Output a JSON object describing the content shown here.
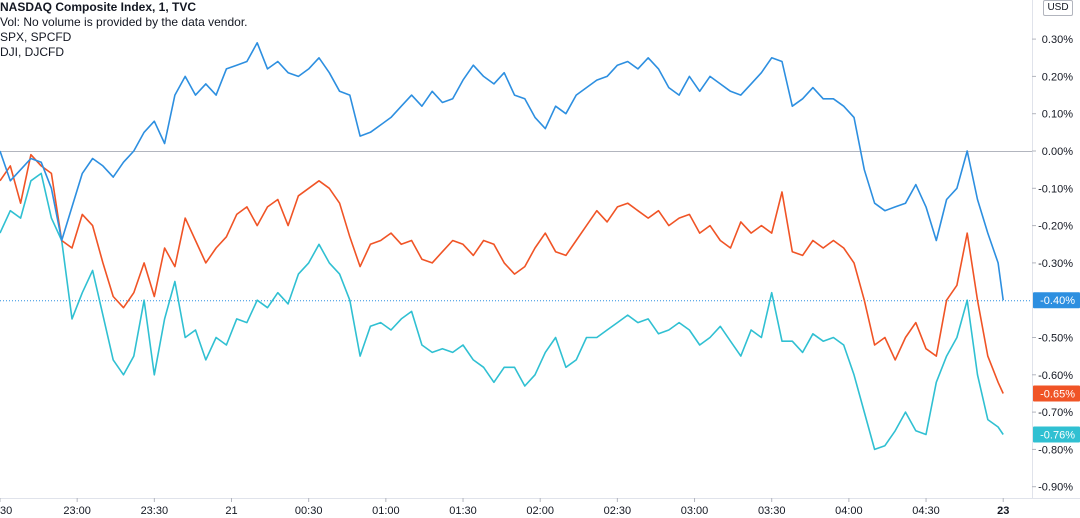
{
  "legend": {
    "main": "NASDAQ Composite Index, 1, TVC",
    "vol": "Vol: No volume is provided by the data vendor.",
    "spx": "SPX, SPCFD",
    "dji": "DJI, DJCFD"
  },
  "currency_button": "USD",
  "chart_data": {
    "type": "line",
    "ylim": [
      -0.93,
      0.36
    ],
    "y_ticks": [
      "0.30%",
      "0.20%",
      "0.10%",
      "0.00%",
      "-0.10%",
      "-0.20%",
      "-0.30%",
      "-0.50%",
      "-0.60%",
      "-0.70%",
      "-0.80%",
      "-0.90%"
    ],
    "y_tick_values": [
      0.3,
      0.2,
      0.1,
      0.0,
      -0.1,
      -0.2,
      -0.3,
      -0.5,
      -0.6,
      -0.7,
      -0.8,
      -0.9
    ],
    "x_ticks": [
      {
        "label": "30",
        "t": 0
      },
      {
        "label": "23:00",
        "t": 15
      },
      {
        "label": "23:30",
        "t": 30
      },
      {
        "label": "21",
        "t": 45
      },
      {
        "label": "00:30",
        "t": 60
      },
      {
        "label": "01:00",
        "t": 75
      },
      {
        "label": "01:30",
        "t": 90
      },
      {
        "label": "02:00",
        "t": 105
      },
      {
        "label": "02:30",
        "t": 120
      },
      {
        "label": "03:00",
        "t": 135
      },
      {
        "label": "03:30",
        "t": 150
      },
      {
        "label": "04:00",
        "t": 165
      },
      {
        "label": "04:30",
        "t": 180
      },
      {
        "label": "23",
        "t": 195,
        "bold": true
      }
    ],
    "series": [
      {
        "color": "#2d8fe0",
        "last_label": "-0.40%",
        "last_value": -0.4,
        "points": [
          [
            0,
            0.0
          ],
          [
            2,
            -0.08
          ],
          [
            4,
            -0.05
          ],
          [
            6,
            -0.02
          ],
          [
            8,
            -0.03
          ],
          [
            10,
            -0.1
          ],
          [
            12,
            -0.24
          ],
          [
            14,
            -0.15
          ],
          [
            16,
            -0.06
          ],
          [
            18,
            -0.02
          ],
          [
            20,
            -0.04
          ],
          [
            22,
            -0.07
          ],
          [
            24,
            -0.03
          ],
          [
            26,
            0.0
          ],
          [
            28,
            0.05
          ],
          [
            30,
            0.08
          ],
          [
            32,
            0.02
          ],
          [
            34,
            0.15
          ],
          [
            36,
            0.2
          ],
          [
            38,
            0.15
          ],
          [
            40,
            0.18
          ],
          [
            42,
            0.15
          ],
          [
            44,
            0.22
          ],
          [
            46,
            0.23
          ],
          [
            48,
            0.24
          ],
          [
            50,
            0.29
          ],
          [
            52,
            0.22
          ],
          [
            54,
            0.24
          ],
          [
            56,
            0.21
          ],
          [
            58,
            0.2
          ],
          [
            60,
            0.22
          ],
          [
            62,
            0.25
          ],
          [
            64,
            0.21
          ],
          [
            66,
            0.16
          ],
          [
            68,
            0.15
          ],
          [
            70,
            0.04
          ],
          [
            72,
            0.05
          ],
          [
            74,
            0.07
          ],
          [
            76,
            0.09
          ],
          [
            78,
            0.12
          ],
          [
            80,
            0.15
          ],
          [
            82,
            0.12
          ],
          [
            84,
            0.16
          ],
          [
            86,
            0.13
          ],
          [
            88,
            0.14
          ],
          [
            90,
            0.19
          ],
          [
            92,
            0.23
          ],
          [
            94,
            0.2
          ],
          [
            96,
            0.18
          ],
          [
            98,
            0.21
          ],
          [
            100,
            0.15
          ],
          [
            102,
            0.14
          ],
          [
            104,
            0.09
          ],
          [
            106,
            0.06
          ],
          [
            108,
            0.12
          ],
          [
            110,
            0.1
          ],
          [
            112,
            0.15
          ],
          [
            114,
            0.17
          ],
          [
            116,
            0.19
          ],
          [
            118,
            0.2
          ],
          [
            120,
            0.23
          ],
          [
            122,
            0.24
          ],
          [
            124,
            0.22
          ],
          [
            126,
            0.25
          ],
          [
            128,
            0.22
          ],
          [
            130,
            0.17
          ],
          [
            132,
            0.15
          ],
          [
            134,
            0.2
          ],
          [
            136,
            0.16
          ],
          [
            138,
            0.2
          ],
          [
            140,
            0.18
          ],
          [
            142,
            0.16
          ],
          [
            144,
            0.15
          ],
          [
            146,
            0.18
          ],
          [
            148,
            0.21
          ],
          [
            150,
            0.25
          ],
          [
            152,
            0.24
          ],
          [
            154,
            0.12
          ],
          [
            156,
            0.14
          ],
          [
            158,
            0.17
          ],
          [
            160,
            0.14
          ],
          [
            162,
            0.14
          ],
          [
            164,
            0.12
          ],
          [
            166,
            0.09
          ],
          [
            168,
            -0.05
          ],
          [
            170,
            -0.14
          ],
          [
            172,
            -0.16
          ],
          [
            174,
            -0.15
          ],
          [
            176,
            -0.14
          ],
          [
            178,
            -0.09
          ],
          [
            180,
            -0.15
          ],
          [
            182,
            -0.24
          ],
          [
            184,
            -0.13
          ],
          [
            186,
            -0.1
          ],
          [
            188,
            0.0
          ],
          [
            190,
            -0.13
          ],
          [
            192,
            -0.22
          ],
          [
            194,
            -0.3
          ],
          [
            195,
            -0.4
          ]
        ]
      },
      {
        "color": "#f05426",
        "last_label": "-0.65%",
        "last_value": -0.65,
        "points": [
          [
            0,
            -0.08
          ],
          [
            2,
            -0.04
          ],
          [
            4,
            -0.14
          ],
          [
            6,
            -0.01
          ],
          [
            8,
            -0.04
          ],
          [
            10,
            -0.06
          ],
          [
            12,
            -0.24
          ],
          [
            14,
            -0.26
          ],
          [
            16,
            -0.17
          ],
          [
            18,
            -0.2
          ],
          [
            20,
            -0.3
          ],
          [
            22,
            -0.39
          ],
          [
            24,
            -0.42
          ],
          [
            26,
            -0.38
          ],
          [
            28,
            -0.3
          ],
          [
            30,
            -0.39
          ],
          [
            32,
            -0.26
          ],
          [
            34,
            -0.31
          ],
          [
            36,
            -0.18
          ],
          [
            38,
            -0.24
          ],
          [
            40,
            -0.3
          ],
          [
            42,
            -0.26
          ],
          [
            44,
            -0.23
          ],
          [
            46,
            -0.17
          ],
          [
            48,
            -0.15
          ],
          [
            50,
            -0.2
          ],
          [
            52,
            -0.15
          ],
          [
            54,
            -0.13
          ],
          [
            56,
            -0.2
          ],
          [
            58,
            -0.12
          ],
          [
            60,
            -0.1
          ],
          [
            62,
            -0.08
          ],
          [
            64,
            -0.1
          ],
          [
            66,
            -0.14
          ],
          [
            68,
            -0.23
          ],
          [
            70,
            -0.31
          ],
          [
            72,
            -0.25
          ],
          [
            74,
            -0.24
          ],
          [
            76,
            -0.22
          ],
          [
            78,
            -0.25
          ],
          [
            80,
            -0.24
          ],
          [
            82,
            -0.29
          ],
          [
            84,
            -0.3
          ],
          [
            86,
            -0.27
          ],
          [
            88,
            -0.24
          ],
          [
            90,
            -0.25
          ],
          [
            92,
            -0.28
          ],
          [
            94,
            -0.24
          ],
          [
            96,
            -0.25
          ],
          [
            98,
            -0.3
          ],
          [
            100,
            -0.33
          ],
          [
            102,
            -0.31
          ],
          [
            104,
            -0.26
          ],
          [
            106,
            -0.22
          ],
          [
            108,
            -0.27
          ],
          [
            110,
            -0.28
          ],
          [
            112,
            -0.24
          ],
          [
            114,
            -0.2
          ],
          [
            116,
            -0.16
          ],
          [
            118,
            -0.19
          ],
          [
            120,
            -0.15
          ],
          [
            122,
            -0.14
          ],
          [
            124,
            -0.16
          ],
          [
            126,
            -0.18
          ],
          [
            128,
            -0.16
          ],
          [
            130,
            -0.2
          ],
          [
            132,
            -0.18
          ],
          [
            134,
            -0.17
          ],
          [
            136,
            -0.22
          ],
          [
            138,
            -0.2
          ],
          [
            140,
            -0.24
          ],
          [
            142,
            -0.26
          ],
          [
            144,
            -0.19
          ],
          [
            146,
            -0.22
          ],
          [
            148,
            -0.2
          ],
          [
            150,
            -0.22
          ],
          [
            152,
            -0.11
          ],
          [
            154,
            -0.27
          ],
          [
            156,
            -0.28
          ],
          [
            158,
            -0.24
          ],
          [
            160,
            -0.26
          ],
          [
            162,
            -0.24
          ],
          [
            164,
            -0.26
          ],
          [
            166,
            -0.3
          ],
          [
            168,
            -0.4
          ],
          [
            170,
            -0.52
          ],
          [
            172,
            -0.5
          ],
          [
            174,
            -0.56
          ],
          [
            176,
            -0.5
          ],
          [
            178,
            -0.46
          ],
          [
            180,
            -0.53
          ],
          [
            182,
            -0.55
          ],
          [
            184,
            -0.4
          ],
          [
            186,
            -0.36
          ],
          [
            188,
            -0.22
          ],
          [
            190,
            -0.4
          ],
          [
            192,
            -0.55
          ],
          [
            194,
            -0.62
          ],
          [
            195,
            -0.65
          ]
        ]
      },
      {
        "color": "#30c0d2",
        "last_label": "-0.76%",
        "last_value": -0.76,
        "points": [
          [
            0,
            -0.22
          ],
          [
            2,
            -0.16
          ],
          [
            4,
            -0.18
          ],
          [
            6,
            -0.08
          ],
          [
            8,
            -0.06
          ],
          [
            10,
            -0.18
          ],
          [
            12,
            -0.24
          ],
          [
            14,
            -0.45
          ],
          [
            16,
            -0.38
          ],
          [
            18,
            -0.32
          ],
          [
            20,
            -0.44
          ],
          [
            22,
            -0.56
          ],
          [
            24,
            -0.6
          ],
          [
            26,
            -0.55
          ],
          [
            28,
            -0.4
          ],
          [
            30,
            -0.6
          ],
          [
            32,
            -0.45
          ],
          [
            34,
            -0.35
          ],
          [
            36,
            -0.5
          ],
          [
            38,
            -0.48
          ],
          [
            40,
            -0.56
          ],
          [
            42,
            -0.5
          ],
          [
            44,
            -0.52
          ],
          [
            46,
            -0.45
          ],
          [
            48,
            -0.46
          ],
          [
            50,
            -0.4
          ],
          [
            52,
            -0.42
          ],
          [
            54,
            -0.38
          ],
          [
            56,
            -0.41
          ],
          [
            58,
            -0.33
          ],
          [
            60,
            -0.3
          ],
          [
            62,
            -0.25
          ],
          [
            64,
            -0.3
          ],
          [
            66,
            -0.33
          ],
          [
            68,
            -0.4
          ],
          [
            70,
            -0.55
          ],
          [
            72,
            -0.47
          ],
          [
            74,
            -0.46
          ],
          [
            76,
            -0.48
          ],
          [
            78,
            -0.45
          ],
          [
            80,
            -0.43
          ],
          [
            82,
            -0.52
          ],
          [
            84,
            -0.54
          ],
          [
            86,
            -0.53
          ],
          [
            88,
            -0.54
          ],
          [
            90,
            -0.52
          ],
          [
            92,
            -0.56
          ],
          [
            94,
            -0.58
          ],
          [
            96,
            -0.62
          ],
          [
            98,
            -0.58
          ],
          [
            100,
            -0.58
          ],
          [
            102,
            -0.63
          ],
          [
            104,
            -0.6
          ],
          [
            106,
            -0.54
          ],
          [
            108,
            -0.5
          ],
          [
            110,
            -0.58
          ],
          [
            112,
            -0.56
          ],
          [
            114,
            -0.5
          ],
          [
            116,
            -0.5
          ],
          [
            118,
            -0.48
          ],
          [
            120,
            -0.46
          ],
          [
            122,
            -0.44
          ],
          [
            124,
            -0.46
          ],
          [
            126,
            -0.45
          ],
          [
            128,
            -0.49
          ],
          [
            130,
            -0.48
          ],
          [
            132,
            -0.46
          ],
          [
            134,
            -0.48
          ],
          [
            136,
            -0.52
          ],
          [
            138,
            -0.5
          ],
          [
            140,
            -0.47
          ],
          [
            142,
            -0.51
          ],
          [
            144,
            -0.55
          ],
          [
            146,
            -0.48
          ],
          [
            148,
            -0.5
          ],
          [
            150,
            -0.38
          ],
          [
            152,
            -0.51
          ],
          [
            154,
            -0.51
          ],
          [
            156,
            -0.54
          ],
          [
            158,
            -0.49
          ],
          [
            160,
            -0.51
          ],
          [
            162,
            -0.5
          ],
          [
            164,
            -0.52
          ],
          [
            166,
            -0.6
          ],
          [
            168,
            -0.7
          ],
          [
            170,
            -0.8
          ],
          [
            172,
            -0.79
          ],
          [
            174,
            -0.75
          ],
          [
            176,
            -0.7
          ],
          [
            178,
            -0.75
          ],
          [
            180,
            -0.76
          ],
          [
            182,
            -0.62
          ],
          [
            184,
            -0.55
          ],
          [
            186,
            -0.5
          ],
          [
            188,
            -0.4
          ],
          [
            190,
            -0.6
          ],
          [
            192,
            -0.72
          ],
          [
            194,
            -0.74
          ],
          [
            195,
            -0.76
          ]
        ]
      }
    ]
  }
}
